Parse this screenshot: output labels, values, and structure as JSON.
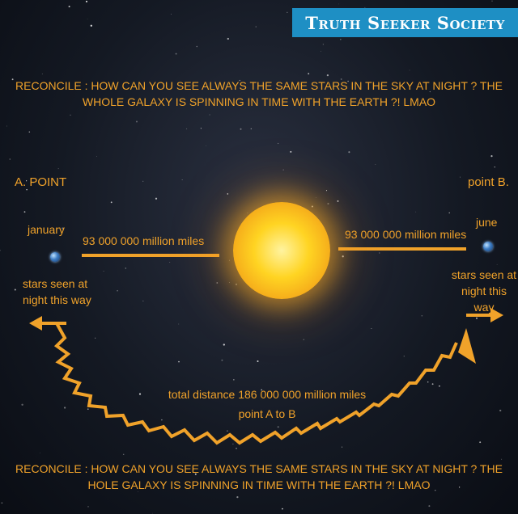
{
  "banner": {
    "title": "Truth Seeker Society"
  },
  "captions": {
    "top": "RECONCILE : HOW CAN YOU SEE ALWAYS THE SAME STARS IN THE SKY AT NIGHT ? THE WHOLE GALAXY IS SPINNING IN TIME WITH THE EARTH ?! LMAO",
    "bottom": "RECONCILE : HOW CAN YOU SEE ALWAYS THE SAME STARS IN THE SKY AT NIGHT ? THE HOLE GALAXY IS SPINNING IN TIME WITH THE EARTH ?! LMAO"
  },
  "points": {
    "a_label": "A. POINT",
    "b_label": "point B.",
    "january": "january",
    "june": "june"
  },
  "distances": {
    "left": "93 000 000 million miles",
    "right": "93 000 000 million miles",
    "total_line1": "total distance 186 000 000 million miles",
    "total_line2": "point A to B"
  },
  "stars_text": {
    "left": "stars seen at night this way",
    "right": "stars seen at night this way"
  },
  "colors": {
    "accent": "#f0a22a",
    "banner": "#1e8fc4",
    "background": "#141923"
  },
  "icons": [
    "earth-icon",
    "sun-icon",
    "arrow-left-icon",
    "arrow-right-icon"
  ]
}
